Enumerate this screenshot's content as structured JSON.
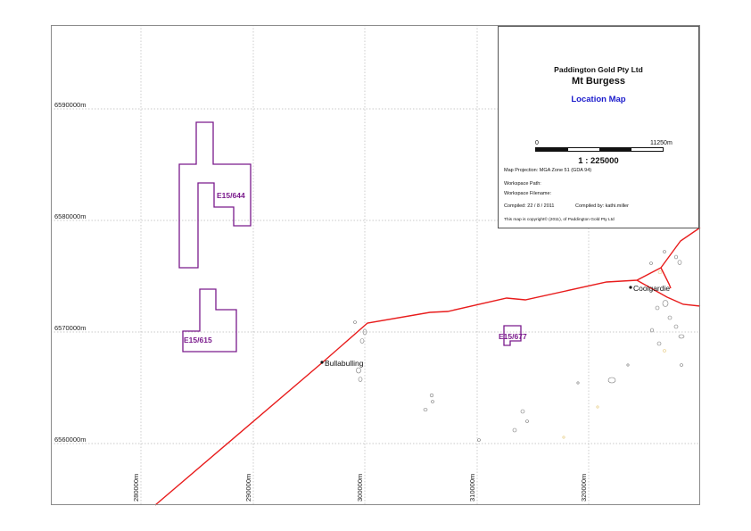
{
  "legend": {
    "company": "Paddington Gold Pty Ltd",
    "project": "Mt Burgess",
    "map_title": "Location Map",
    "scale_bar_start": "0",
    "scale_bar_end": "11250m",
    "scale_ratio": "1 : 225000",
    "projection": "Map Projection: MGA Zone 51 (GDA 94)",
    "workspace_path": "Workspace Path:",
    "workspace_filename": "Workspace Filename:",
    "compiled_date": "Compiled: 22 / 8 / 2011",
    "compiled_by": "Compiled by: kathi.miller",
    "copyright": "This map is copyright© (2011), of Paddington Gold Pty Ltd",
    "title_color": "#1a1acc"
  },
  "grid": {
    "northings": [
      "6590000m",
      "6580000m",
      "6570000m",
      "6560000m"
    ],
    "eastings": [
      "280000m",
      "290000m",
      "300000m",
      "310000m",
      "320000m"
    ]
  },
  "tenements": [
    {
      "label": "E15/644"
    },
    {
      "label": "E15/615"
    },
    {
      "label": "E15/677"
    }
  ],
  "towns": [
    {
      "name": "Bullabulling"
    },
    {
      "name": "Coolgardie"
    }
  ],
  "colors": {
    "tenement": "#7a1a8c",
    "road": "#e81c1c",
    "grid": "#b8b8b8"
  }
}
